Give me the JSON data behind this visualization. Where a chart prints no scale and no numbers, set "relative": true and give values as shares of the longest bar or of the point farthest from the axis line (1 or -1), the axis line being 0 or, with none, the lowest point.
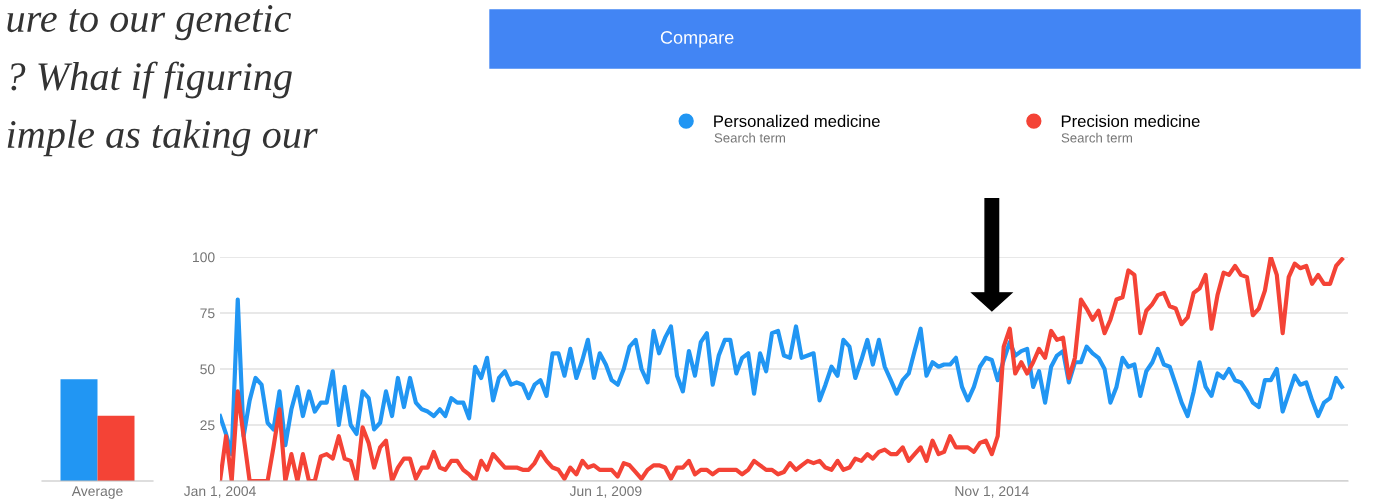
{
  "chart_data": [
    {
      "type": "bar",
      "categories": [
        "Average"
      ],
      "relative": true,
      "grid": false,
      "series": [
        {
          "color": "#2196f3",
          "values": [
            1
          ]
        },
        {
          "color": "#f44336",
          "values": [
            0.64
          ]
        }
      ]
    },
    {
      "type": "line",
      "title": "Compare",
      "legend": "top",
      "grid": "y",
      "marker": "none",
      "line_style": "solid",
      "annotations": [
        "ure to our genetic",
        "? What if figuring",
        "imple as taking our",
        "Search term",
        "Search term"
      ],
      "xlim": [
        "2004-01-01",
        "2019-11-01"
      ],
      "xticks": [
        {
          "value": "2004-01-01",
          "label": "Jan 1, 2004"
        },
        {
          "value": "2009-06-01",
          "label": "Jun 1, 2009"
        },
        {
          "value": "2014-11-01",
          "label": "Nov 1, 2014"
        }
      ],
      "ylim": [
        0,
        100
      ],
      "yticks": [
        {
          "value": 0,
          "label": null
        },
        25,
        50,
        75,
        100
      ],
      "x": [
        "2004-01",
        "2004-02",
        "2004-03",
        "2004-04",
        "2004-05",
        "2004-06",
        "2004-07",
        "2004-08",
        "2004-09",
        "2004-10",
        "2004-11",
        "2004-12",
        "2005-01",
        "2005-02",
        "2005-03",
        "2005-04",
        "2005-05",
        "2005-06",
        "2005-07",
        "2005-08",
        "2005-09",
        "2005-10",
        "2005-11",
        "2005-12",
        "2006-01",
        "2006-02",
        "2006-03",
        "2006-04",
        "2006-05",
        "2006-06",
        "2006-07",
        "2006-08",
        "2006-09",
        "2006-10",
        "2006-11",
        "2006-12",
        "2007-01",
        "2007-02",
        "2007-03",
        "2007-04",
        "2007-05",
        "2007-06",
        "2007-07",
        "2007-08",
        "2007-09",
        "2007-10",
        "2007-11",
        "2007-12",
        "2008-01",
        "2008-02",
        "2008-03",
        "2008-04",
        "2008-05",
        "2008-06",
        "2008-07",
        "2008-08",
        "2008-09",
        "2008-10",
        "2008-11",
        "2008-12",
        "2009-01",
        "2009-02",
        "2009-03",
        "2009-04",
        "2009-05",
        "2009-06",
        "2009-07",
        "2009-08",
        "2009-09",
        "2009-10",
        "2009-11",
        "2009-12",
        "2010-01",
        "2010-02",
        "2010-03",
        "2010-04",
        "2010-05",
        "2010-06",
        "2010-07",
        "2010-08",
        "2010-09",
        "2010-10",
        "2010-11",
        "2010-12",
        "2011-01",
        "2011-02",
        "2011-03",
        "2011-04",
        "2011-05",
        "2011-06",
        "2011-07",
        "2011-08",
        "2011-09",
        "2011-10",
        "2011-11",
        "2011-12",
        "2012-01",
        "2012-02",
        "2012-03",
        "2012-04",
        "2012-05",
        "2012-06",
        "2012-07",
        "2012-08",
        "2012-09",
        "2012-10",
        "2012-11",
        "2012-12",
        "2013-01",
        "2013-02",
        "2013-03",
        "2013-04",
        "2013-05",
        "2013-06",
        "2013-07",
        "2013-08",
        "2013-09",
        "2013-10",
        "2013-11",
        "2013-12",
        "2014-01",
        "2014-02",
        "2014-03",
        "2014-04",
        "2014-05",
        "2014-06",
        "2014-07",
        "2014-08",
        "2014-09",
        "2014-10",
        "2014-11",
        "2014-12",
        "2015-01",
        "2015-02",
        "2015-03",
        "2015-04",
        "2015-05",
        "2015-06",
        "2015-07",
        "2015-08",
        "2015-09",
        "2015-10",
        "2015-11",
        "2015-12",
        "2016-01",
        "2016-02",
        "2016-03",
        "2016-04",
        "2016-05",
        "2016-06",
        "2016-07",
        "2016-08",
        "2016-09",
        "2016-10",
        "2016-11",
        "2016-12",
        "2017-01",
        "2017-02",
        "2017-03",
        "2017-04",
        "2017-05",
        "2017-06",
        "2017-07",
        "2017-08",
        "2017-09",
        "2017-10",
        "2017-11",
        "2017-12",
        "2018-01",
        "2018-02",
        "2018-03",
        "2018-04",
        "2018-05",
        "2018-06",
        "2018-07",
        "2018-08",
        "2018-09",
        "2018-10",
        "2018-11",
        "2018-12",
        "2019-01",
        "2019-02",
        "2019-03",
        "2019-04",
        "2019-05",
        "2019-06",
        "2019-07",
        "2019-08",
        "2019-09",
        "2019-10"
      ],
      "series": [
        {
          "name": "Personalized medicine",
          "color": "#2196f3",
          "values": [
            29,
            21,
            12,
            81,
            20,
            36,
            46,
            43,
            26,
            23,
            40,
            16,
            32,
            42,
            29,
            40,
            31,
            35,
            35,
            49,
            25,
            42,
            25,
            21,
            40,
            37,
            23,
            26,
            40,
            29,
            46,
            33,
            46,
            35,
            32,
            31,
            29,
            32,
            29,
            37,
            35,
            35,
            28,
            51,
            46,
            55,
            36,
            46,
            49,
            43,
            44,
            43,
            37,
            43,
            45,
            38,
            57,
            57,
            47,
            59,
            46,
            54,
            63,
            46,
            57,
            52,
            45,
            43,
            50,
            60,
            63,
            50,
            44,
            67,
            57,
            64,
            69,
            47,
            40,
            58,
            47,
            62,
            66,
            43,
            56,
            63,
            63,
            48,
            55,
            57,
            39,
            57,
            49,
            66,
            67,
            56,
            55,
            69,
            55,
            56,
            57,
            36,
            43,
            51,
            47,
            63,
            60,
            46,
            54,
            63,
            52,
            63,
            51,
            45,
            39,
            45,
            48,
            58,
            68,
            47,
            53,
            51,
            52,
            52,
            55,
            42,
            36,
            42,
            51,
            55,
            54,
            45,
            54,
            62,
            56,
            58,
            59,
            42,
            49,
            35,
            51,
            56,
            58,
            44,
            53,
            53,
            60,
            57,
            55,
            50,
            35,
            42,
            55,
            51,
            52,
            38,
            49,
            53,
            59,
            52,
            51,
            43,
            35,
            29,
            40,
            53,
            42,
            38,
            48,
            46,
            50,
            45,
            44,
            40,
            35,
            33,
            45,
            45,
            50,
            31,
            39,
            47,
            43,
            44,
            36,
            29,
            35,
            37,
            46,
            42
          ]
        },
        {
          "name": "Precision medicine",
          "color": "#f44336",
          "values": [
            0,
            20,
            0,
            40,
            20,
            0,
            0,
            0,
            0,
            15,
            32,
            0,
            12,
            0,
            12,
            0,
            0,
            11,
            12,
            10,
            20,
            10,
            9,
            0,
            24,
            17,
            6,
            15,
            18,
            0,
            6,
            10,
            10,
            1,
            6,
            6,
            13,
            6,
            5,
            9,
            9,
            5,
            3,
            0,
            9,
            5,
            12,
            9,
            6,
            6,
            6,
            5,
            5,
            8,
            13,
            9,
            6,
            5,
            1,
            6,
            3,
            9,
            6,
            7,
            5,
            5,
            5,
            2,
            8,
            7,
            4,
            1,
            5,
            7,
            7,
            6,
            1,
            6,
            6,
            9,
            3,
            5,
            5,
            3,
            5,
            5,
            5,
            5,
            3,
            5,
            9,
            7,
            5,
            5,
            3,
            4,
            8,
            5,
            7,
            9,
            8,
            9,
            6,
            5,
            9,
            5,
            6,
            10,
            9,
            12,
            10,
            13,
            14,
            12,
            12,
            15,
            9,
            12,
            15,
            9,
            18,
            12,
            13,
            20,
            15,
            15,
            15,
            13,
            17,
            18,
            12,
            20,
            60,
            68,
            48,
            53,
            48,
            53,
            59,
            55,
            67,
            63,
            64,
            46,
            55,
            81,
            77,
            72,
            76,
            66,
            72,
            81,
            82,
            94,
            92,
            66,
            76,
            79,
            83,
            84,
            78,
            77,
            70,
            73,
            84,
            86,
            92,
            68,
            83,
            93,
            92,
            96,
            92,
            91,
            74,
            77,
            85,
            100,
            92,
            66,
            91,
            97,
            95,
            96,
            88,
            92,
            88,
            88,
            96,
            99
          ]
        }
      ]
    }
  ]
}
